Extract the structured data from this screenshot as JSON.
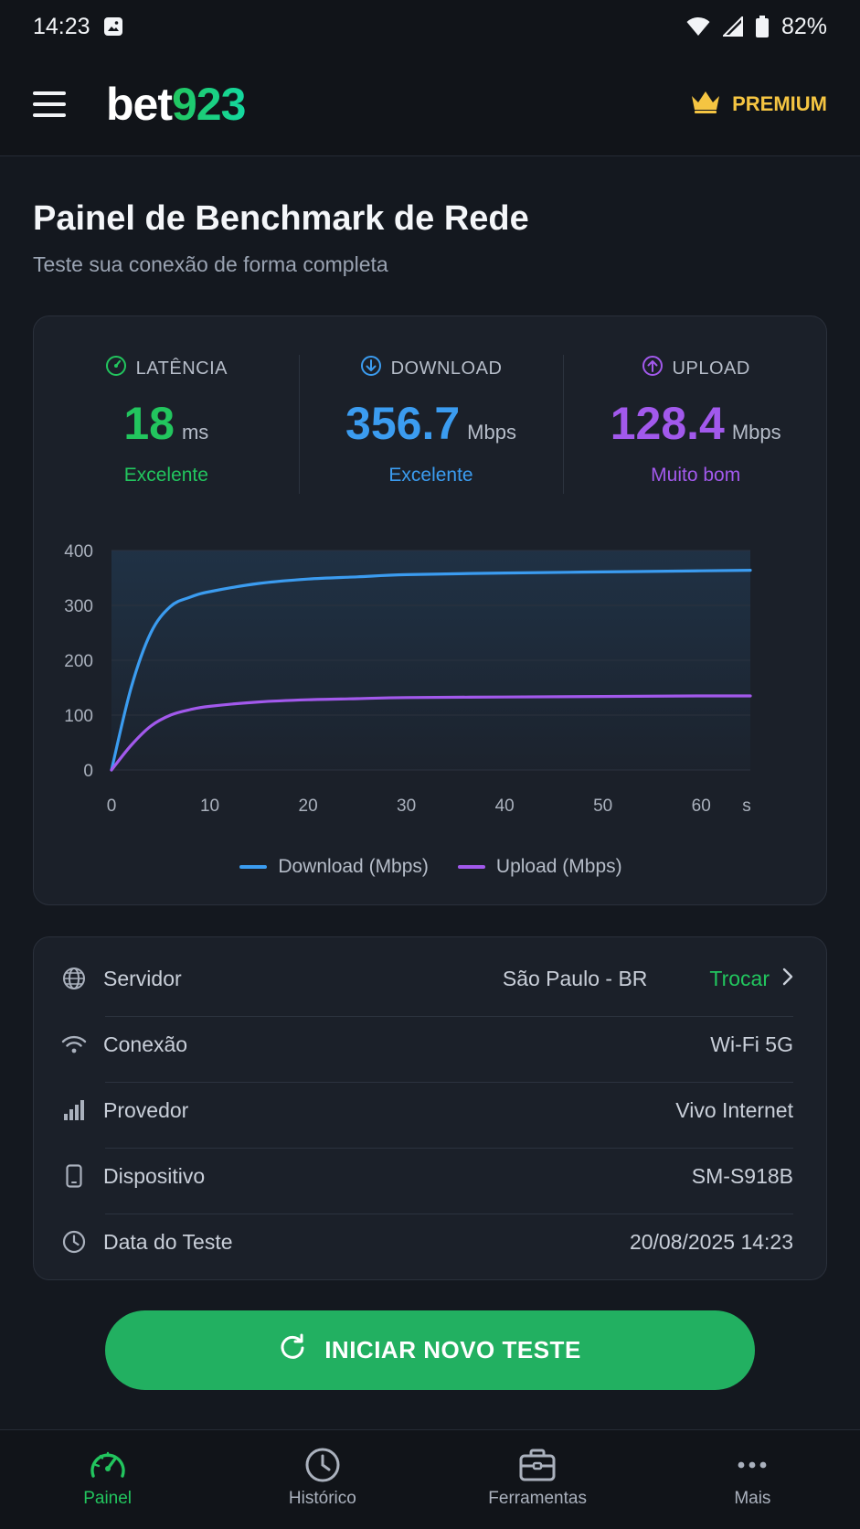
{
  "status_bar": {
    "time": "14:23",
    "battery": "82%"
  },
  "header": {
    "logo_white": "bet",
    "logo_green": "923",
    "premium_label": "PREMIUM"
  },
  "page": {
    "title": "Painel de Benchmark de Rede",
    "subtitle": "Teste sua conexão de forma completa"
  },
  "metrics": {
    "latency": {
      "label": "LATÊNCIA",
      "value": "18",
      "unit": "ms",
      "rating": "Excelente",
      "color": "#22c55e"
    },
    "download": {
      "label": "DOWNLOAD",
      "value": "356.7",
      "unit": "Mbps",
      "rating": "Excelente",
      "color": "#3b9cf0"
    },
    "upload": {
      "label": "UPLOAD",
      "value": "128.4",
      "unit": "Mbps",
      "rating": "Muito bom",
      "color": "#a259ec"
    }
  },
  "chart_data": {
    "type": "line",
    "title": "",
    "xlabel": "s",
    "ylabel": "",
    "xlim": [
      0,
      65
    ],
    "ylim": [
      0,
      400
    ],
    "x_ticks": [
      0,
      10,
      20,
      30,
      40,
      50,
      60
    ],
    "y_ticks": [
      0,
      100,
      200,
      300,
      400
    ],
    "x": [
      0,
      2,
      4,
      6,
      8,
      10,
      15,
      20,
      25,
      30,
      40,
      50,
      60,
      65
    ],
    "series": [
      {
        "name": "Download (Mbps)",
        "color": "#3b9cf0",
        "values": [
          0,
          150,
          250,
          298,
          315,
          325,
          340,
          348,
          352,
          356,
          359,
          361,
          363,
          364
        ]
      },
      {
        "name": "Upload (Mbps)",
        "color": "#a259ec",
        "values": [
          0,
          45,
          80,
          100,
          110,
          116,
          124,
          128,
          130,
          132,
          133,
          134,
          135,
          135
        ]
      }
    ],
    "grid": true,
    "legend_position": "bottom"
  },
  "info": {
    "server_label": "Servidor",
    "server_value": "São Paulo - BR",
    "server_action": "Trocar",
    "connection_label": "Conexão",
    "connection_value": "Wi-Fi 5G",
    "provider_label": "Provedor",
    "provider_value": "Vivo Internet",
    "device_label": "Dispositivo",
    "device_value": "SM-S918B",
    "date_label": "Data do Teste",
    "date_value": "20/08/2025 14:23"
  },
  "cta": {
    "label": "INICIAR NOVO TESTE"
  },
  "nav": [
    {
      "label": "Painel",
      "icon": "speedometer-icon",
      "active": true
    },
    {
      "label": "Histórico",
      "icon": "clock-icon",
      "active": false
    },
    {
      "label": "Ferramentas",
      "icon": "toolbox-icon",
      "active": false
    },
    {
      "label": "Mais",
      "icon": "more-dots-icon",
      "active": false
    }
  ]
}
